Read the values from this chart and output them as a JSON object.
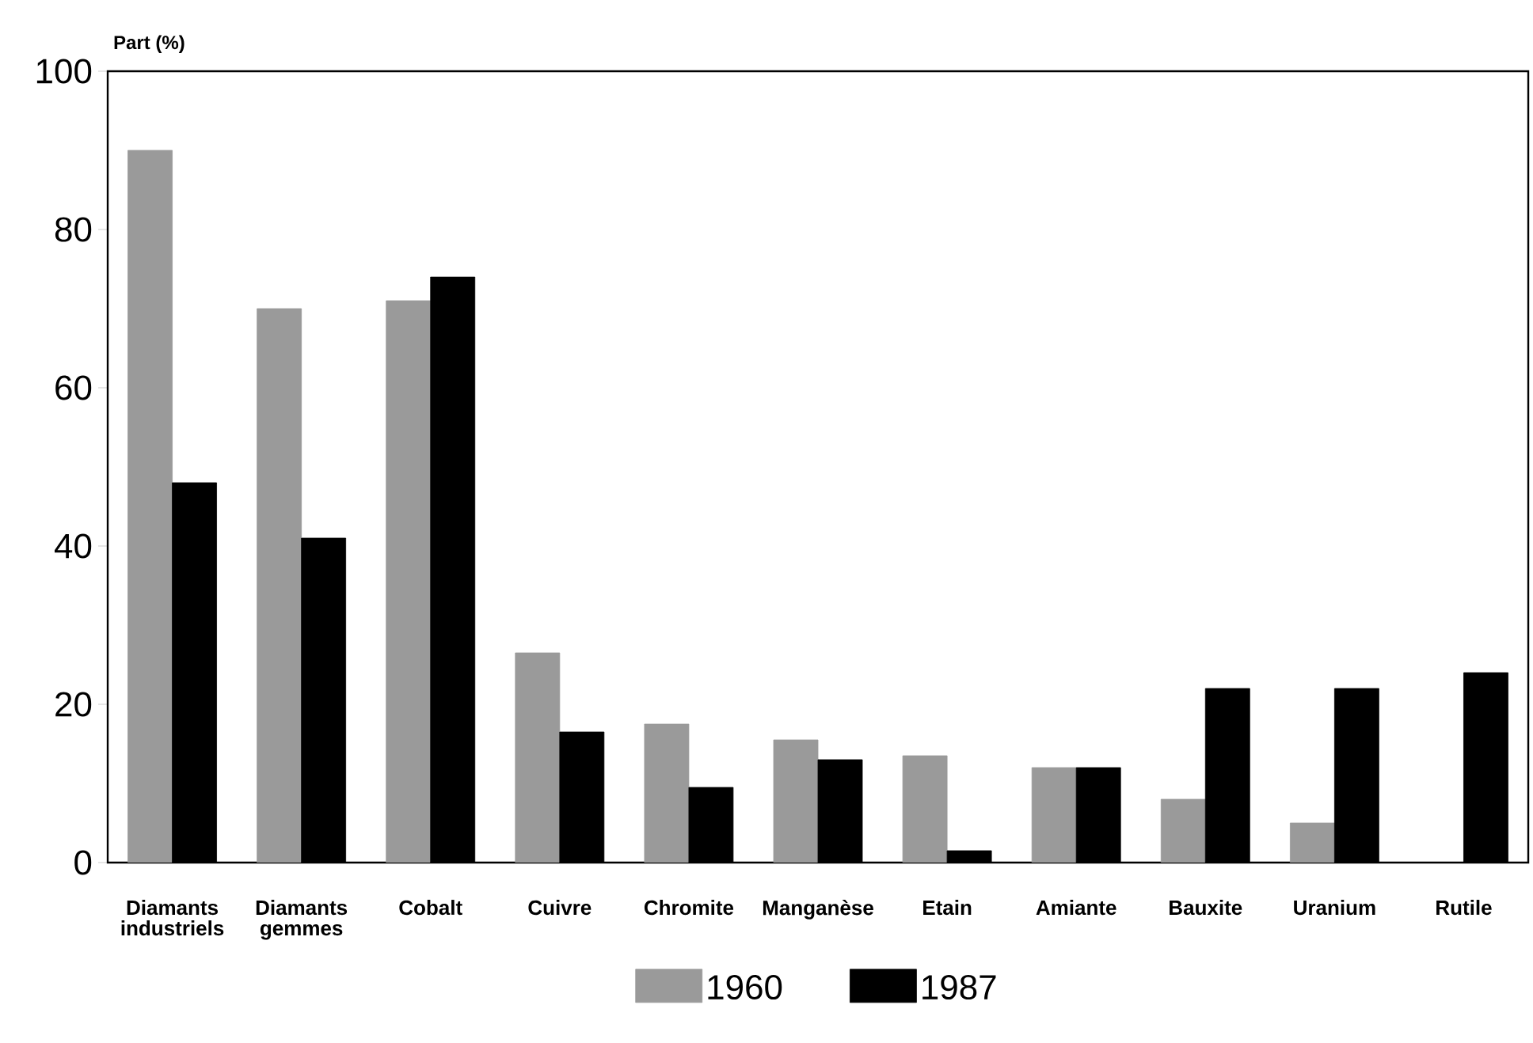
{
  "chart_data": {
    "type": "bar",
    "ylabel": "Part (%)",
    "categories": [
      "Diamants industriels",
      "Diamants gemmes",
      "Cobalt",
      "Cuivre",
      "Chromite",
      "Manganèse",
      "Etain",
      "Amiante",
      "Bauxite",
      "Uranium",
      "Rutile"
    ],
    "series": [
      {
        "name": "1960",
        "color": "#9a9a9a",
        "values": [
          90,
          70,
          71,
          26.5,
          17.5,
          15.5,
          13.5,
          12,
          8,
          5,
          null
        ]
      },
      {
        "name": "1987",
        "color": "#000000",
        "values": [
          48,
          41,
          74,
          16.5,
          9.5,
          13,
          1.5,
          12,
          22,
          22,
          24
        ]
      }
    ],
    "ylim": [
      0,
      100
    ],
    "yticks": [
      0,
      20,
      40,
      60,
      80,
      100
    ],
    "grid": false,
    "legend": "bottom"
  }
}
